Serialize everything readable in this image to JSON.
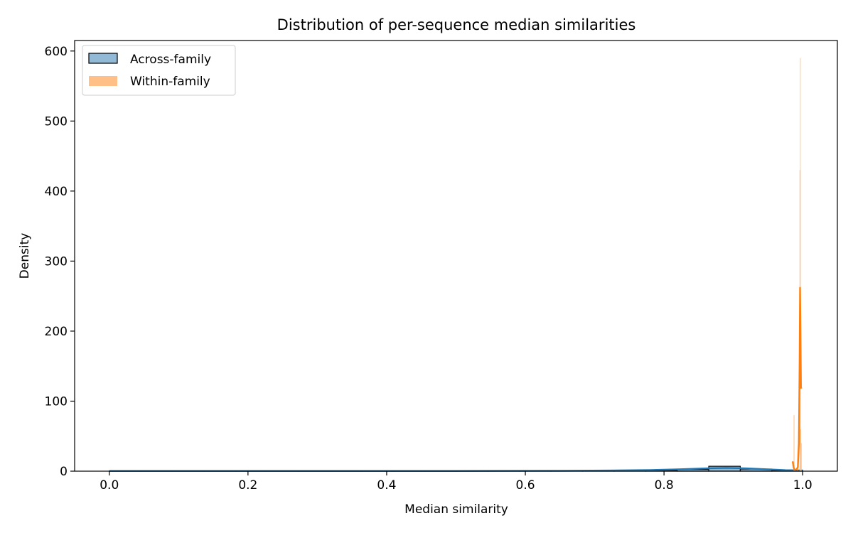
{
  "chart_data": {
    "type": "histogram",
    "title": "Distribution of per-sequence median similarities",
    "xlabel": "Median similarity",
    "ylabel": "Density",
    "xlim": [
      -0.05,
      1.05
    ],
    "ylim": [
      0,
      615
    ],
    "xticks": [
      "0.0",
      "0.2",
      "0.4",
      "0.6",
      "0.8",
      "1.0"
    ],
    "xtick_values": [
      0.0,
      0.2,
      0.4,
      0.6,
      0.8,
      1.0
    ],
    "yticks": [
      "0",
      "100",
      "200",
      "300",
      "400",
      "500",
      "600"
    ],
    "ytick_values": [
      0,
      100,
      200,
      300,
      400,
      500,
      600
    ],
    "grid": false,
    "legend_position": "upper-left",
    "series": [
      {
        "name": "Across-family",
        "color": "#1f77b4",
        "fill_color": "#92b9d6",
        "edge_color": "#000000",
        "bins": [
          {
            "x0": 0.0,
            "x1": 0.0455,
            "density": 0.2
          },
          {
            "x0": 0.0455,
            "x1": 0.091,
            "density": 0.2
          },
          {
            "x0": 0.091,
            "x1": 0.1365,
            "density": 0.2
          },
          {
            "x0": 0.1365,
            "x1": 0.182,
            "density": 0.2
          },
          {
            "x0": 0.182,
            "x1": 0.2275,
            "density": 0.2
          },
          {
            "x0": 0.2275,
            "x1": 0.273,
            "density": 0.2
          },
          {
            "x0": 0.273,
            "x1": 0.3185,
            "density": 0.2
          },
          {
            "x0": 0.3185,
            "x1": 0.364,
            "density": 0.2
          },
          {
            "x0": 0.364,
            "x1": 0.4095,
            "density": 0.2
          },
          {
            "x0": 0.4095,
            "x1": 0.455,
            "density": 0.2
          },
          {
            "x0": 0.455,
            "x1": 0.5005,
            "density": 0.2
          },
          {
            "x0": 0.5005,
            "x1": 0.546,
            "density": 0.2
          },
          {
            "x0": 0.546,
            "x1": 0.5915,
            "density": 0.3
          },
          {
            "x0": 0.5915,
            "x1": 0.637,
            "density": 0.3
          },
          {
            "x0": 0.637,
            "x1": 0.6825,
            "density": 0.3
          },
          {
            "x0": 0.6825,
            "x1": 0.728,
            "density": 0.4
          },
          {
            "x0": 0.728,
            "x1": 0.7735,
            "density": 0.6
          },
          {
            "x0": 0.7735,
            "x1": 0.819,
            "density": 1.0
          },
          {
            "x0": 0.819,
            "x1": 0.8645,
            "density": 2.5
          },
          {
            "x0": 0.8645,
            "x1": 0.91,
            "density": 7.0
          },
          {
            "x0": 0.91,
            "x1": 0.9555,
            "density": 3.0
          },
          {
            "x0": 0.9555,
            "x1": 1.0,
            "density": 1.2
          }
        ],
        "kde": [
          [
            0.0,
            0.3
          ],
          [
            0.2,
            0.3
          ],
          [
            0.4,
            0.3
          ],
          [
            0.55,
            0.4
          ],
          [
            0.65,
            0.6
          ],
          [
            0.72,
            0.9
          ],
          [
            0.78,
            1.6
          ],
          [
            0.82,
            2.6
          ],
          [
            0.86,
            4.0
          ],
          [
            0.89,
            4.6
          ],
          [
            0.92,
            4.0
          ],
          [
            0.95,
            2.6
          ],
          [
            0.975,
            1.5
          ],
          [
            1.0,
            1.0
          ]
        ]
      },
      {
        "name": "Within-family",
        "color": "#ff7f0e",
        "fill_color": "#ffbf86",
        "edge_color": "none",
        "bins": [
          {
            "x0": 0.987,
            "x1": 0.988,
            "density": 80
          },
          {
            "x0": 0.9925,
            "x1": 0.9935,
            "density": 20
          },
          {
            "x0": 0.9955,
            "x1": 0.9962,
            "density": 430
          },
          {
            "x0": 0.9962,
            "x1": 0.9968,
            "density": 590
          },
          {
            "x0": 0.9968,
            "x1": 0.9975,
            "density": 60
          },
          {
            "x0": 0.9975,
            "x1": 0.9985,
            "density": 40
          }
        ],
        "kde": [
          [
            0.9855,
            14
          ],
          [
            0.987,
            5
          ],
          [
            0.9885,
            2
          ],
          [
            0.99,
            2
          ],
          [
            0.9915,
            3
          ],
          [
            0.993,
            6
          ],
          [
            0.9945,
            40
          ],
          [
            0.9955,
            150
          ],
          [
            0.9962,
            262
          ],
          [
            0.9968,
            200
          ],
          [
            0.9975,
            120
          ],
          [
            0.9982,
            118
          ]
        ]
      }
    ]
  }
}
